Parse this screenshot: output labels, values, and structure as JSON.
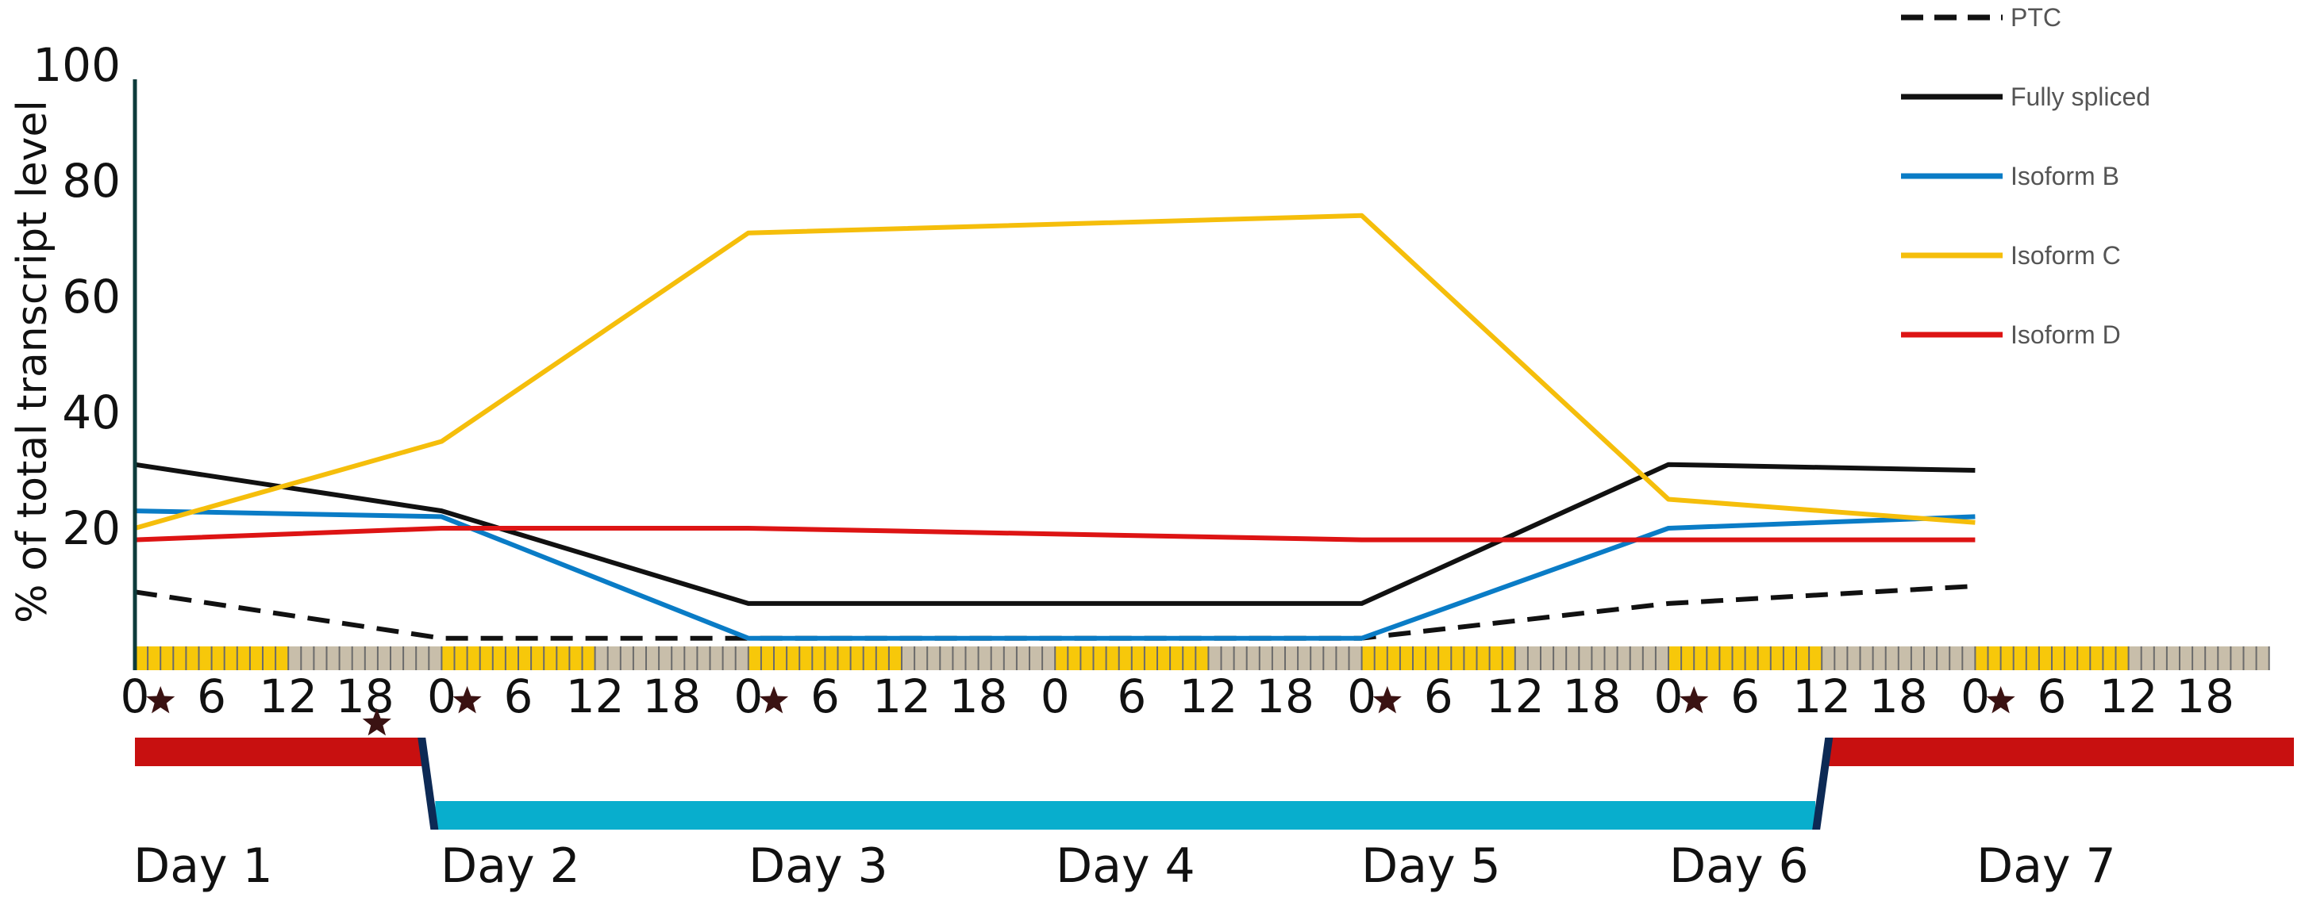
{
  "chart_data": {
    "type": "line",
    "title": "",
    "xlabel": "",
    "ylabel": "% of total transcript level",
    "yticks": [
      20,
      40,
      60,
      80,
      100
    ],
    "ylim": [
      0,
      100
    ],
    "x_hours": [
      0,
      24,
      48,
      96,
      120,
      144
    ],
    "xlim_hours": [
      0,
      167
    ],
    "x_tick_labels": [
      "0",
      "6",
      "12",
      "18",
      "0",
      "6",
      "12",
      "18",
      "0",
      "6",
      "12",
      "18",
      "0",
      "6",
      "12",
      "18",
      "0",
      "6",
      "12",
      "18",
      "0",
      "6",
      "12",
      "18",
      "0",
      "6",
      "12",
      "18"
    ],
    "x_tick_hours": [
      0,
      6,
      12,
      18,
      24,
      30,
      36,
      42,
      48,
      54,
      60,
      66,
      72,
      78,
      84,
      90,
      96,
      102,
      108,
      114,
      120,
      126,
      132,
      138,
      144,
      150,
      156,
      162
    ],
    "star_hours": [
      2,
      18,
      26,
      50,
      98,
      122,
      146
    ],
    "series": [
      {
        "name": "PTC",
        "color": "#111111",
        "dash": true,
        "values": [
          9,
          1,
          1,
          1,
          7,
          10
        ]
      },
      {
        "name": "Fully spliced",
        "color": "#111111",
        "dash": false,
        "values": [
          31,
          23,
          7,
          7,
          31,
          30
        ]
      },
      {
        "name": "Isoform B",
        "color": "#0a7cc6",
        "dash": false,
        "values": [
          23,
          22,
          1,
          1,
          20,
          22
        ]
      },
      {
        "name": "Isoform C",
        "color": "#f5be0b",
        "dash": false,
        "values": [
          20,
          35,
          71,
          74,
          25,
          21
        ]
      },
      {
        "name": "Isoform D",
        "color": "#dd1414",
        "dash": false,
        "values": [
          18,
          20,
          20,
          18,
          18,
          18
        ]
      }
    ],
    "legend_position": "top-right",
    "grid": false
  },
  "days": [
    "Day 1",
    "Day 2",
    "Day 3",
    "Day 4",
    "Day 5",
    "Day 6",
    "Day 7"
  ],
  "colors": {
    "light_stripe": "#f7c80a",
    "dark_stripe": "#c8beaa",
    "treatment_bar_red": "#c81010",
    "treatment_bar_cyan": "#08aecd",
    "star": "#3a1212"
  }
}
